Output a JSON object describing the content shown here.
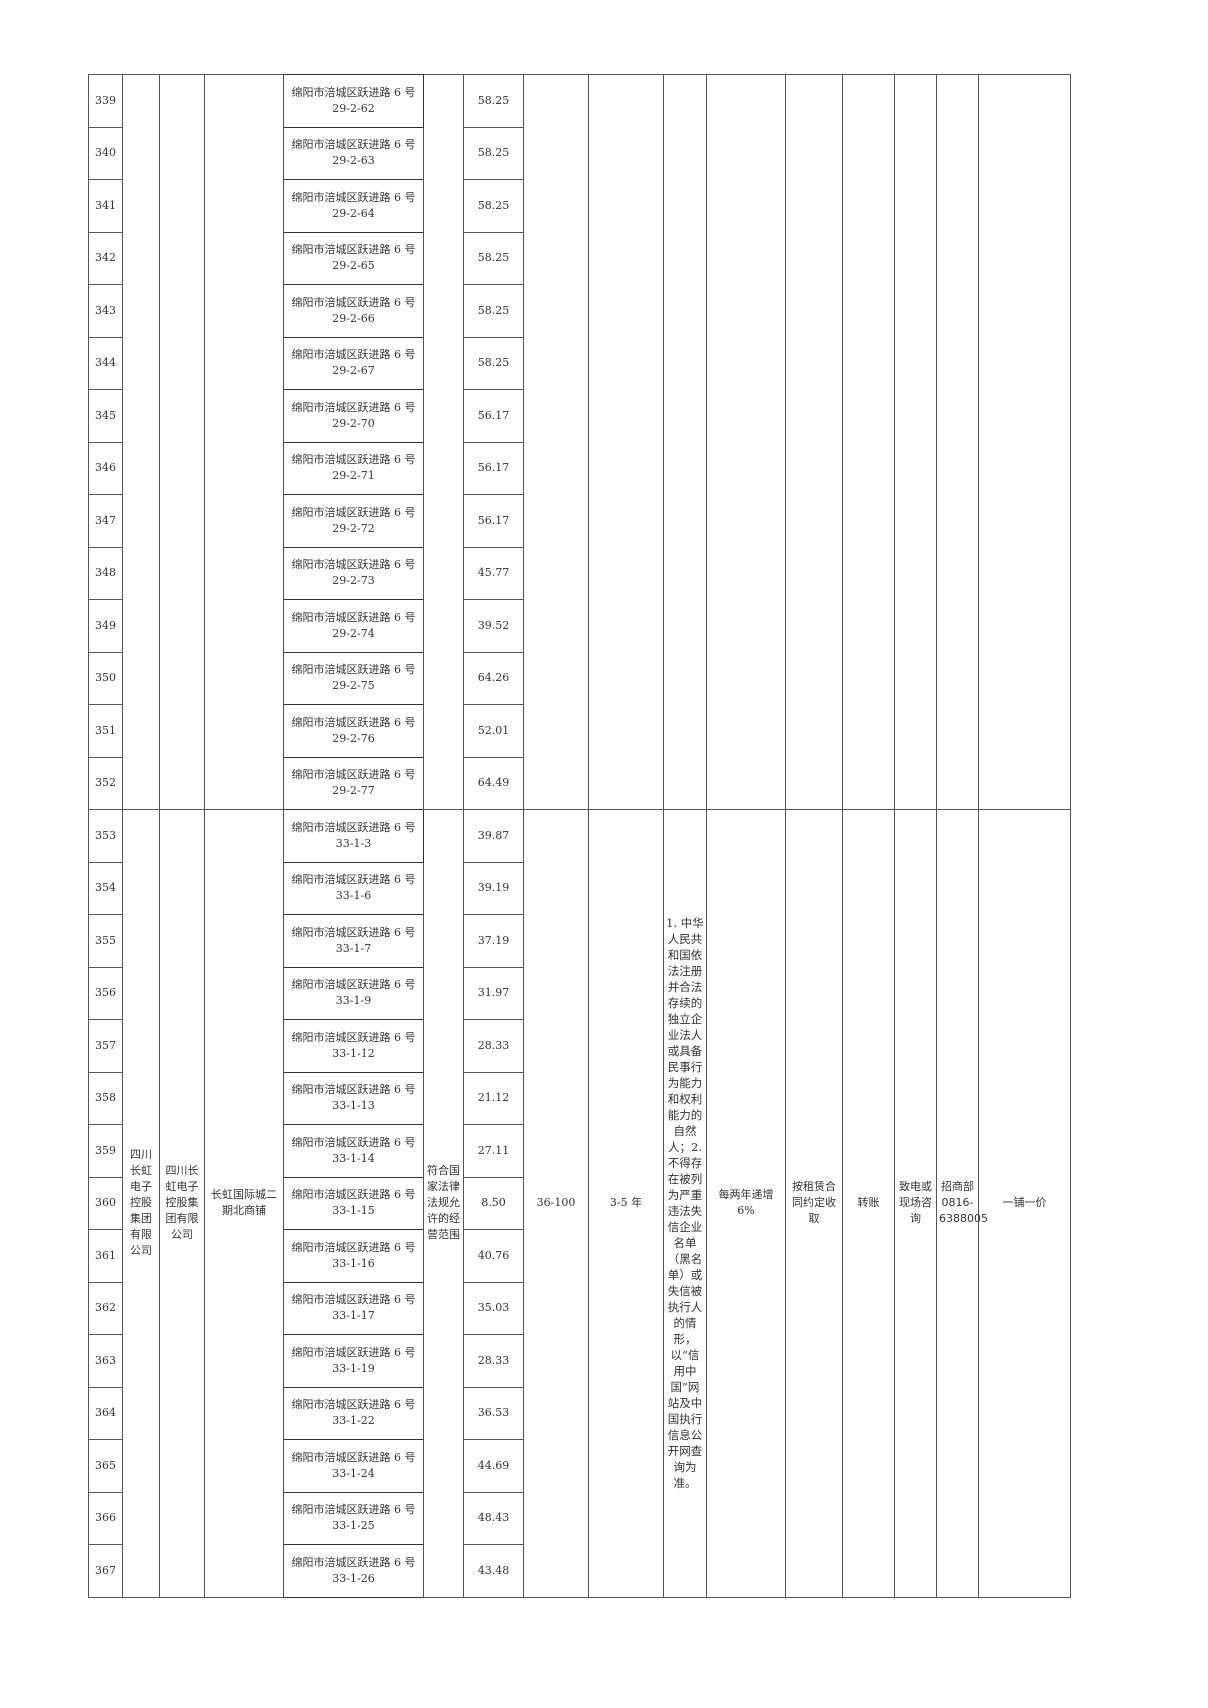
{
  "group_a": {
    "rows": [
      {
        "no": "339",
        "address": "绵阳市涪城区跃进路 6 号 29-2-62",
        "area": "58.25"
      },
      {
        "no": "340",
        "address": "绵阳市涪城区跃进路 6 号 29-2-63",
        "area": "58.25"
      },
      {
        "no": "341",
        "address": "绵阳市涪城区跃进路 6 号 29-2-64",
        "area": "58.25"
      },
      {
        "no": "342",
        "address": "绵阳市涪城区跃进路 6 号 29-2-65",
        "area": "58.25"
      },
      {
        "no": "343",
        "address": "绵阳市涪城区跃进路 6 号 29-2-66",
        "area": "58.25"
      },
      {
        "no": "344",
        "address": "绵阳市涪城区跃进路 6 号 29-2-67",
        "area": "58.25"
      },
      {
        "no": "345",
        "address": "绵阳市涪城区跃进路 6 号 29-2-70",
        "area": "56.17"
      },
      {
        "no": "346",
        "address": "绵阳市涪城区跃进路 6 号 29-2-71",
        "area": "56.17"
      },
      {
        "no": "347",
        "address": "绵阳市涪城区跃进路 6 号 29-2-72",
        "area": "56.17"
      },
      {
        "no": "348",
        "address": "绵阳市涪城区跃进路 6 号 29-2-73",
        "area": "45.77"
      },
      {
        "no": "349",
        "address": "绵阳市涪城区跃进路 6 号 29-2-74",
        "area": "39.52"
      },
      {
        "no": "350",
        "address": "绵阳市涪城区跃进路 6 号 29-2-75",
        "area": "64.26"
      },
      {
        "no": "351",
        "address": "绵阳市涪城区跃进路 6 号 29-2-76",
        "area": "52.01"
      },
      {
        "no": "352",
        "address": "绵阳市涪城区跃进路 6 号 29-2-77",
        "area": "64.49"
      }
    ]
  },
  "group_b": {
    "owner": "四川长虹电子控股集团有限公司",
    "lessor": "四川长虹电子控股集团有限公司",
    "project": "长虹国际城二期北商铺",
    "business_scope": "符合国家法律法规允许的经营范围",
    "price_range": "36-100",
    "term": "3-5 年",
    "conditions": "1. 中华人民共和国依法注册并合法存续的独立企业法人或具备民事行为能力和权利能力的自然人；2. 不得存在被列为严重违法失信企业名单（黑名单）或失信被执行人的情形，以“信用中国”网站及中国执行信息公开网查询为准。",
    "increase": "每两年递增 6%",
    "collection": "按租赁合同约定收取",
    "payment": "转账",
    "inquiry": "致电或现场咨询",
    "contact_dept": "招商部",
    "contact_phone": "0816-6388005",
    "pricing": "一铺一价",
    "rows": [
      {
        "no": "353",
        "address": "绵阳市涪城区跃进路 6 号 33-1-3",
        "area": "39.87"
      },
      {
        "no": "354",
        "address": "绵阳市涪城区跃进路 6 号 33-1-6",
        "area": "39.19"
      },
      {
        "no": "355",
        "address": "绵阳市涪城区跃进路 6 号 33-1-7",
        "area": "37.19"
      },
      {
        "no": "356",
        "address": "绵阳市涪城区跃进路 6 号 33-1-9",
        "area": "31.97"
      },
      {
        "no": "357",
        "address": "绵阳市涪城区跃进路 6 号 33-1-12",
        "area": "28.33"
      },
      {
        "no": "358",
        "address": "绵阳市涪城区跃进路 6 号 33-1-13",
        "area": "21.12"
      },
      {
        "no": "359",
        "address": "绵阳市涪城区跃进路 6 号 33-1-14",
        "area": "27.11"
      },
      {
        "no": "360",
        "address": "绵阳市涪城区跃进路 6 号 33-1-15",
        "area": "8.50"
      },
      {
        "no": "361",
        "address": "绵阳市涪城区跃进路 6 号 33-1-16",
        "area": "40.76"
      },
      {
        "no": "362",
        "address": "绵阳市涪城区跃进路 6 号 33-1-17",
        "area": "35.03"
      },
      {
        "no": "363",
        "address": "绵阳市涪城区跃进路 6 号 33-1-19",
        "area": "28.33"
      },
      {
        "no": "364",
        "address": "绵阳市涪城区跃进路 6 号 33-1-22",
        "area": "36.53"
      },
      {
        "no": "365",
        "address": "绵阳市涪城区跃进路 6 号 33-1-24",
        "area": "44.69"
      },
      {
        "no": "366",
        "address": "绵阳市涪城区跃进路 6 号 33-1-25",
        "area": "48.43"
      },
      {
        "no": "367",
        "address": "绵阳市涪城区跃进路 6 号 33-1-26",
        "area": "43.48"
      }
    ]
  }
}
